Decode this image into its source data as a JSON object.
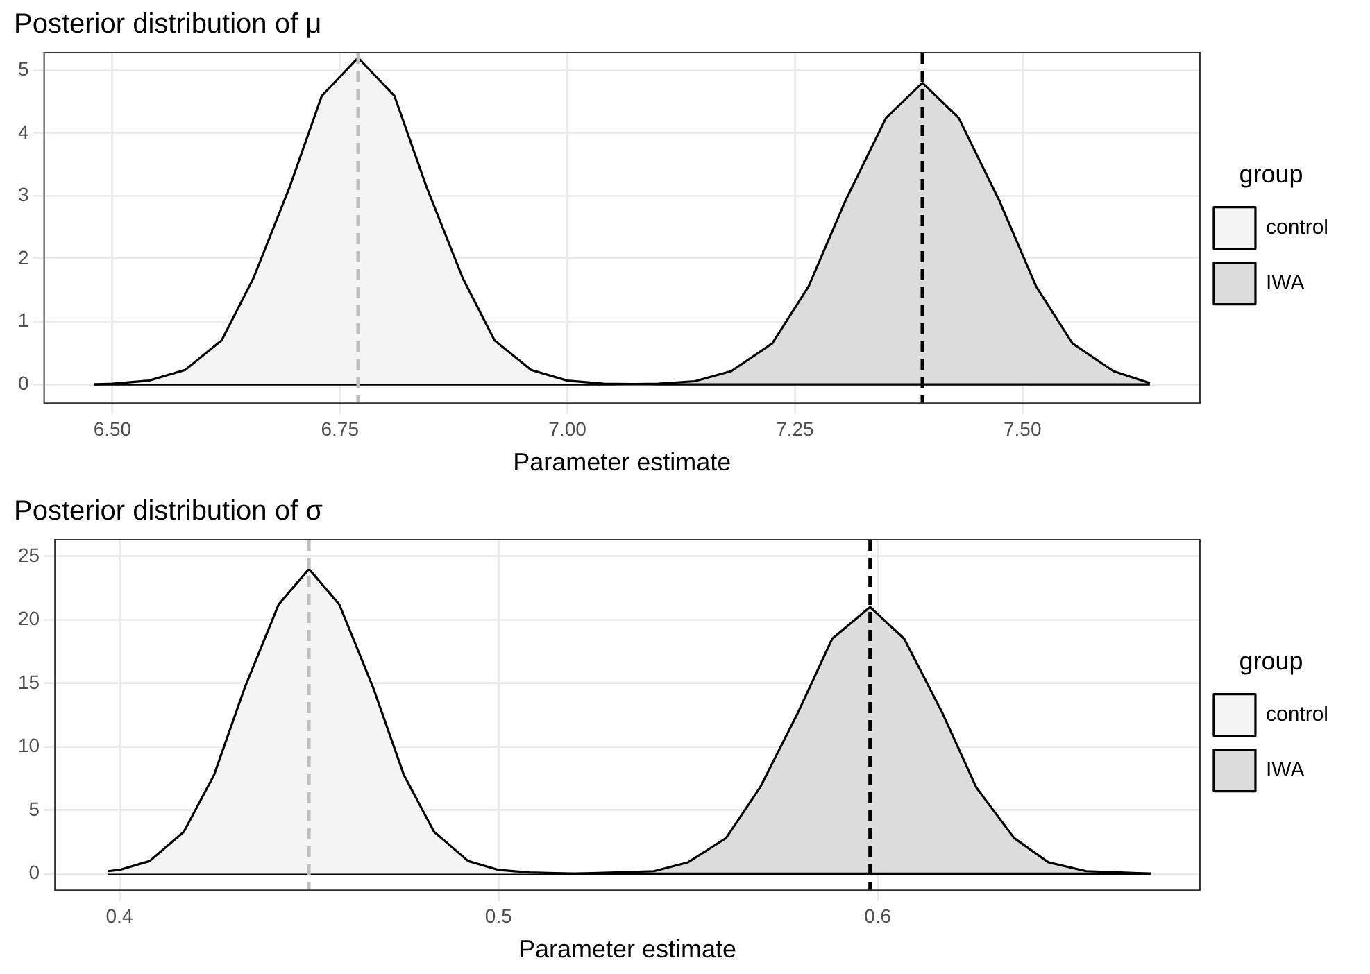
{
  "chart_data": [
    {
      "type": "area",
      "title": "Posterior distribution of μ",
      "xlabel": "Parameter estimate",
      "legend_title": "group",
      "legend": "right",
      "grid": true,
      "xlim": [
        6.425,
        7.695
      ],
      "xticks": [
        {
          "value": 6.5,
          "label": "6.50"
        },
        {
          "value": 6.75,
          "label": "6.75"
        },
        {
          "value": 7.0,
          "label": "7.00"
        },
        {
          "value": 7.25,
          "label": "7.25"
        },
        {
          "value": 7.5,
          "label": "7.50"
        }
      ],
      "ylim": [
        -0.3,
        5.28
      ],
      "yticks": [
        0,
        1,
        2,
        3,
        4,
        5
      ],
      "series": [
        {
          "name": "control",
          "color": "#f4f4f4",
          "x": [
            6.48,
            6.5,
            6.54,
            6.58,
            6.62,
            6.655,
            6.695,
            6.73,
            6.77,
            6.81,
            6.845,
            6.885,
            6.92,
            6.96,
            7.0,
            7.04,
            7.1,
            7.64
          ],
          "values": [
            0,
            0.01,
            0.06,
            0.23,
            0.7,
            1.69,
            3.15,
            4.59,
            5.2,
            4.59,
            3.15,
            1.69,
            0.7,
            0.23,
            0.06,
            0.01,
            0,
            0
          ]
        },
        {
          "name": "IWA",
          "color": "#dcdcdc",
          "x": [
            6.48,
            7.05,
            7.1,
            7.14,
            7.18,
            7.225,
            7.265,
            7.305,
            7.35,
            7.39,
            7.43,
            7.475,
            7.515,
            7.555,
            7.6,
            7.64
          ],
          "values": [
            0,
            0,
            0.01,
            0.05,
            0.21,
            0.65,
            1.56,
            2.91,
            4.24,
            4.8,
            4.24,
            2.91,
            1.56,
            0.65,
            0.21,
            0.02
          ]
        }
      ],
      "ref_lines": [
        {
          "axis": "x",
          "value": 6.77,
          "color": "#bebebe",
          "line_style": "dashed"
        },
        {
          "axis": "x",
          "value": 7.39,
          "color": "#000000",
          "line_style": "dashed"
        }
      ]
    },
    {
      "type": "area",
      "title": "Posterior distribution of σ",
      "xlabel": "Parameter estimate",
      "legend_title": "group",
      "legend": "right",
      "grid": true,
      "xlim": [
        0.383,
        0.685
      ],
      "xticks": [
        0.4,
        0.5,
        0.6
      ],
      "ylim": [
        -1.3,
        26.3
      ],
      "yticks": [
        0,
        5,
        10,
        15,
        20,
        25
      ],
      "series": [
        {
          "name": "control",
          "color": "#f4f4f4",
          "x": [
            0.397,
            0.4,
            0.408,
            0.417,
            0.425,
            0.433,
            0.442,
            0.45,
            0.458,
            0.467,
            0.475,
            0.483,
            0.492,
            0.5,
            0.508,
            0.52,
            0.672
          ],
          "values": [
            0.2,
            0.3,
            1,
            3.3,
            7.8,
            14.6,
            21.2,
            24,
            21.2,
            14.6,
            7.8,
            3.3,
            1,
            0.3,
            0.1,
            0,
            0
          ]
        },
        {
          "name": "IWA",
          "color": "#dcdcdc",
          "x": [
            0.397,
            0.52,
            0.531,
            0.541,
            0.55,
            0.56,
            0.569,
            0.579,
            0.588,
            0.598,
            0.607,
            0.617,
            0.626,
            0.636,
            0.645,
            0.655,
            0.664,
            0.672
          ],
          "values": [
            0,
            0,
            0.1,
            0.2,
            0.9,
            2.8,
            6.8,
            12.7,
            18.5,
            21,
            18.5,
            12.7,
            6.8,
            2.8,
            0.9,
            0.2,
            0.1,
            0
          ]
        }
      ],
      "ref_lines": [
        {
          "axis": "x",
          "value": 0.45,
          "color": "#bebebe",
          "line_style": "dashed"
        },
        {
          "axis": "x",
          "value": 0.598,
          "color": "#000000",
          "line_style": "dashed"
        }
      ]
    }
  ]
}
